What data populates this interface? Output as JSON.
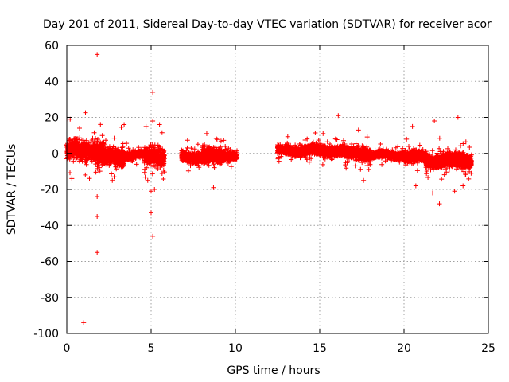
{
  "chart_data": {
    "type": "scatter",
    "title": "Day 201 of 2011, Sidereal Day-to-day VTEC variation (SDTVAR) for receiver acor",
    "xlabel": "GPS time / hours",
    "ylabel": "SDTVAR / TECUs",
    "xlim": [
      0,
      25
    ],
    "ylim": [
      -100,
      60
    ],
    "xticks": [
      0,
      5,
      10,
      15,
      20,
      25
    ],
    "yticks": [
      -100,
      -80,
      -60,
      -40,
      -20,
      0,
      20,
      40,
      60
    ],
    "xtick_labels": [
      "0",
      "5",
      "10",
      "15",
      "20",
      "25"
    ],
    "ytick_labels": [
      "-100",
      "-80",
      "-60",
      "-40",
      "-20",
      "0",
      "20",
      "40",
      "60"
    ],
    "grid": true,
    "marker": "+",
    "marker_color": "#ff0000",
    "dense_segments": [
      {
        "x_start": 0.0,
        "x_end": 1.8,
        "center": 1.5,
        "spread": 5.0
      },
      {
        "x_start": 1.8,
        "x_end": 2.2,
        "center": 0.5,
        "spread": 8.0
      },
      {
        "x_start": 2.2,
        "x_end": 3.4,
        "center": -2.0,
        "spread": 5.0
      },
      {
        "x_start": 3.4,
        "x_end": 4.6,
        "center": -1.0,
        "spread": 2.0
      },
      {
        "x_start": 4.6,
        "x_end": 5.8,
        "center": -1.5,
        "spread": 5.0
      },
      {
        "x_start": 6.8,
        "x_end": 8.0,
        "center": -2.0,
        "spread": 3.0
      },
      {
        "x_start": 8.0,
        "x_end": 9.2,
        "center": -1.5,
        "spread": 4.5
      },
      {
        "x_start": 9.2,
        "x_end": 10.1,
        "center": -1.0,
        "spread": 2.5
      },
      {
        "x_start": 12.5,
        "x_end": 14.5,
        "center": 1.5,
        "spread": 2.5
      },
      {
        "x_start": 14.5,
        "x_end": 16.5,
        "center": 1.5,
        "spread": 3.0
      },
      {
        "x_start": 16.5,
        "x_end": 18.0,
        "center": 0.0,
        "spread": 3.5
      },
      {
        "x_start": 18.0,
        "x_end": 20.0,
        "center": -1.0,
        "spread": 2.0
      },
      {
        "x_start": 20.0,
        "x_end": 21.3,
        "center": -2.0,
        "spread": 3.0
      },
      {
        "x_start": 21.3,
        "x_end": 24.0,
        "center": -4.0,
        "spread": 4.0
      }
    ],
    "notable_points": [
      {
        "x": 1.8,
        "y": 55
      },
      {
        "x": 1.0,
        "y": -94
      },
      {
        "x": 1.8,
        "y": -55
      },
      {
        "x": 1.8,
        "y": -35
      },
      {
        "x": 1.8,
        "y": -24
      },
      {
        "x": 0.2,
        "y": 19
      },
      {
        "x": 5.1,
        "y": 34
      },
      {
        "x": 5.1,
        "y": -46
      },
      {
        "x": 5.0,
        "y": -33
      },
      {
        "x": 5.0,
        "y": -21
      },
      {
        "x": 5.2,
        "y": -20
      },
      {
        "x": 4.8,
        "y": -15
      },
      {
        "x": 4.7,
        "y": 15
      },
      {
        "x": 5.1,
        "y": 18
      },
      {
        "x": 5.5,
        "y": 16
      },
      {
        "x": 3.4,
        "y": 16
      },
      {
        "x": 2.7,
        "y": -15
      },
      {
        "x": 8.7,
        "y": -19
      },
      {
        "x": 8.3,
        "y": 11
      },
      {
        "x": 16.1,
        "y": 21
      },
      {
        "x": 15.2,
        "y": 11
      },
      {
        "x": 17.3,
        "y": 13
      },
      {
        "x": 17.6,
        "y": -15
      },
      {
        "x": 20.5,
        "y": 15
      },
      {
        "x": 20.7,
        "y": -18
      },
      {
        "x": 21.8,
        "y": 18
      },
      {
        "x": 21.7,
        "y": -22
      },
      {
        "x": 22.1,
        "y": -28
      },
      {
        "x": 23.2,
        "y": 20
      },
      {
        "x": 23.0,
        "y": -21
      },
      {
        "x": 23.5,
        "y": -18
      },
      {
        "x": 0.3,
        "y": -14
      },
      {
        "x": 1.1,
        "y": -12
      }
    ]
  }
}
